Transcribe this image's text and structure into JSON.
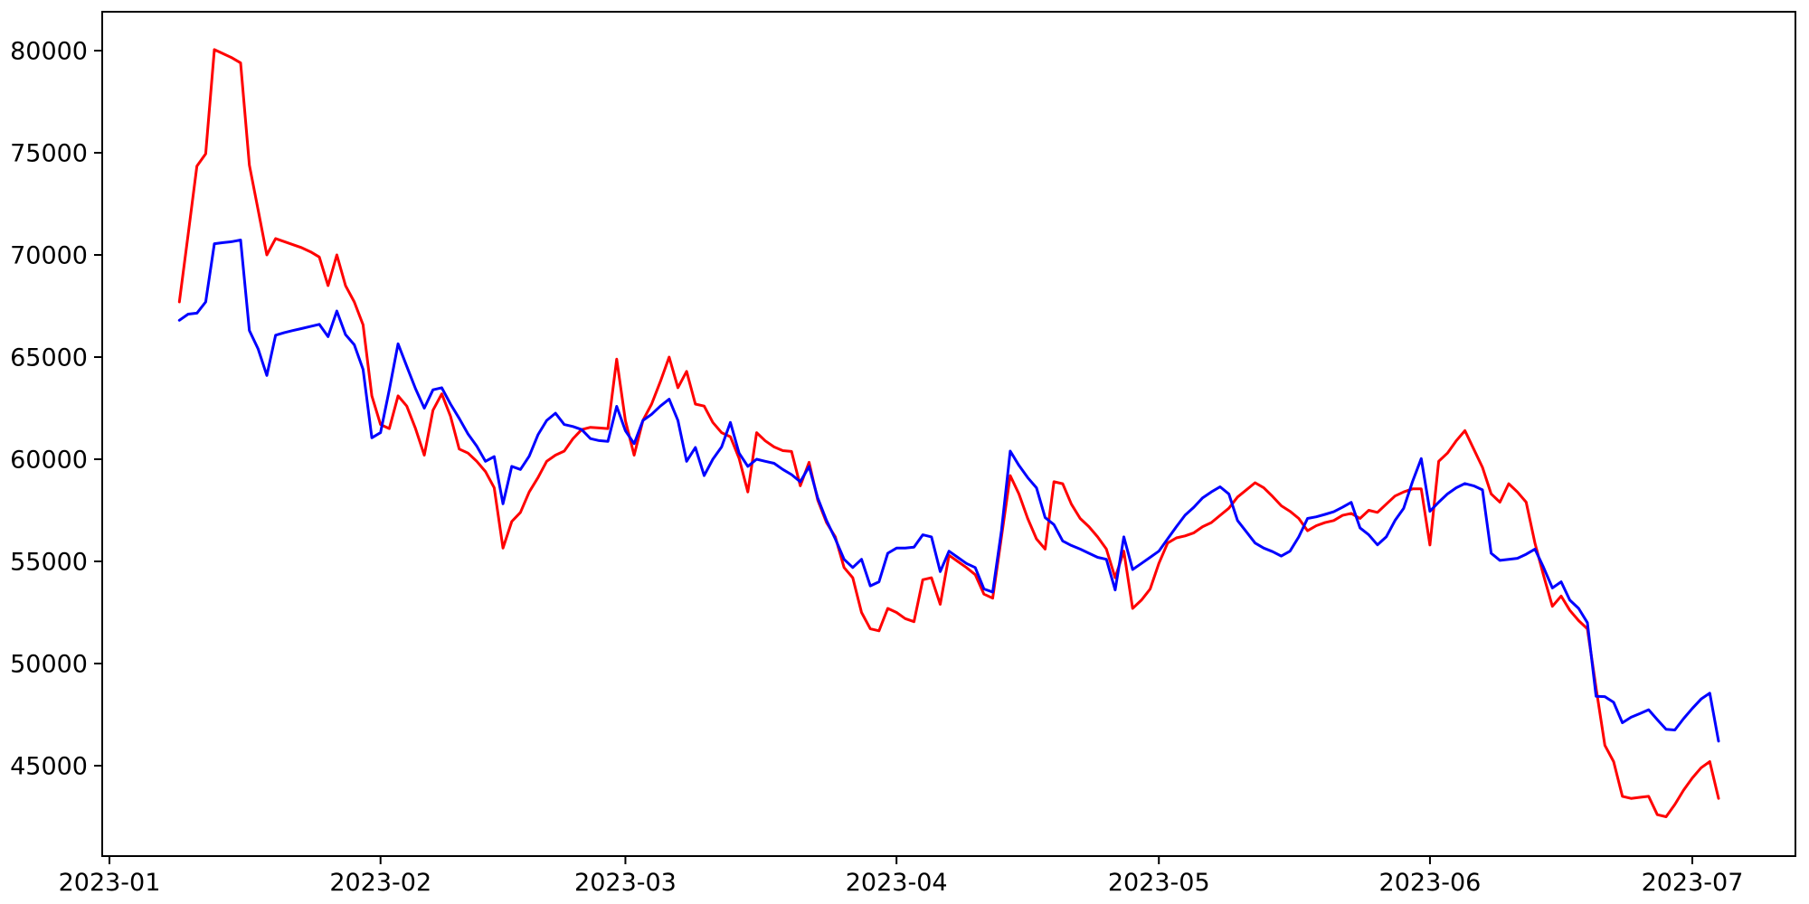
{
  "chart_data": {
    "type": "line",
    "title": "",
    "xlabel": "",
    "ylabel": "",
    "grid": false,
    "legend": null,
    "background_color": "#ffffff",
    "axis_color": "#000000",
    "x_axis": {
      "tick_labels": [
        "2023-01",
        "2023-02",
        "2023-03",
        "2023-04",
        "2023-05",
        "2023-06",
        "2023-07"
      ]
    },
    "y_axis": {
      "tick_labels": [
        "45000",
        "50000",
        "55000",
        "60000",
        "65000",
        "70000",
        "75000",
        "80000"
      ],
      "tick_values": [
        45000,
        50000,
        55000,
        60000,
        65000,
        70000,
        75000,
        80000
      ]
    },
    "ylim": [
      40600,
      82100
    ],
    "xlim_dates": [
      "2022-12-31",
      "2023-07-12"
    ],
    "series": [
      {
        "name": "series_1_red",
        "color": "#ff0000",
        "start_date": "2023-01-09",
        "frequency": "daily",
        "values": [
          67700,
          71000,
          74350,
          74950,
          80050,
          79850,
          79650,
          79400,
          74400,
          72200,
          70000,
          70800,
          70650,
          70500,
          70350,
          70150,
          69900,
          68500,
          70000,
          68500,
          67700,
          66580,
          63100,
          61700,
          61500,
          63100,
          62600,
          61500,
          60200,
          62400,
          63200,
          62100,
          60500,
          60300,
          59900,
          59400,
          58600,
          55650,
          56950,
          57400,
          58400,
          59100,
          59900,
          60200,
          60400,
          61000,
          61450,
          61560,
          61530,
          61500,
          64900,
          61900,
          60200,
          61900,
          62700,
          63800,
          65000,
          63500,
          64300,
          62700,
          62600,
          61800,
          61300,
          61100,
          60050,
          58400,
          61300,
          60900,
          60600,
          60420,
          60380,
          58700,
          59850,
          58000,
          56900,
          56200,
          54700,
          54200,
          52500,
          51700,
          51600,
          52700,
          52500,
          52200,
          52050,
          54100,
          54200,
          52900,
          55300,
          55000,
          54700,
          54350,
          53400,
          53200,
          56200,
          59200,
          58300,
          57100,
          56100,
          55600,
          58900,
          58800,
          57800,
          57100,
          56700,
          56200,
          55600,
          54200,
          55500,
          52700,
          53100,
          53650,
          54900,
          55900,
          56150,
          56250,
          56400,
          56700,
          56900,
          57250,
          57600,
          58150,
          58500,
          58850,
          58600,
          58180,
          57720,
          57450,
          57100,
          56500,
          56750,
          56900,
          57000,
          57250,
          57350,
          57100,
          57500,
          57400,
          57800,
          58200,
          58400,
          58550,
          58550,
          55800,
          59900,
          60300,
          60900,
          61400,
          60500,
          59600,
          58300,
          57900,
          58800,
          58400,
          57900,
          55900,
          54300,
          52800,
          53300,
          52600,
          52100,
          51700,
          48800,
          46000,
          45200,
          43500,
          43400,
          43450,
          43500,
          42600,
          42500,
          43100,
          43800,
          44400,
          44900,
          45200,
          43400
        ]
      },
      {
        "name": "series_2_blue",
        "color": "#0000ff",
        "start_date": "2023-01-09",
        "frequency": "daily",
        "values": [
          66800,
          67100,
          67150,
          67700,
          70550,
          70600,
          70650,
          70730,
          66300,
          65400,
          64100,
          66070,
          66200,
          66300,
          66400,
          66500,
          66600,
          66000,
          67250,
          66100,
          65600,
          64400,
          61050,
          61300,
          63400,
          65650,
          64550,
          63450,
          62500,
          63400,
          63500,
          62700,
          62000,
          61240,
          60640,
          59900,
          60130,
          57820,
          59650,
          59500,
          60150,
          61200,
          61900,
          62250,
          61700,
          61600,
          61450,
          61010,
          60910,
          60870,
          62590,
          61400,
          60760,
          61900,
          62200,
          62600,
          62940,
          61900,
          59900,
          60575,
          59200,
          60000,
          60600,
          61800,
          60300,
          59650,
          60000,
          59900,
          59800,
          59500,
          59250,
          58900,
          59640,
          58100,
          57000,
          56100,
          55100,
          54700,
          55100,
          53800,
          54000,
          55400,
          55650,
          55650,
          55700,
          56300,
          56200,
          54500,
          55500,
          55200,
          54900,
          54700,
          53650,
          53500,
          56500,
          60400,
          59700,
          59100,
          58600,
          57140,
          56800,
          56000,
          55780,
          55600,
          55400,
          55200,
          55100,
          53600,
          56200,
          54600,
          54900,
          55200,
          55500,
          56100,
          56700,
          57260,
          57650,
          58110,
          58400,
          58650,
          58300,
          57000,
          56450,
          55900,
          55650,
          55480,
          55260,
          55500,
          56200,
          57100,
          57180,
          57300,
          57430,
          57650,
          57890,
          56640,
          56300,
          55810,
          56200,
          57000,
          57600,
          58900,
          60030,
          57450,
          57900,
          58300,
          58600,
          58810,
          58700,
          58500,
          55400,
          55050,
          55100,
          55150,
          55350,
          55600,
          54700,
          53700,
          54000,
          53100,
          52700,
          52000,
          48400,
          48380,
          48100,
          47100,
          47370,
          47550,
          47740,
          47250,
          46780,
          46750,
          47300,
          47800,
          48260,
          48550,
          46200
        ]
      }
    ]
  }
}
